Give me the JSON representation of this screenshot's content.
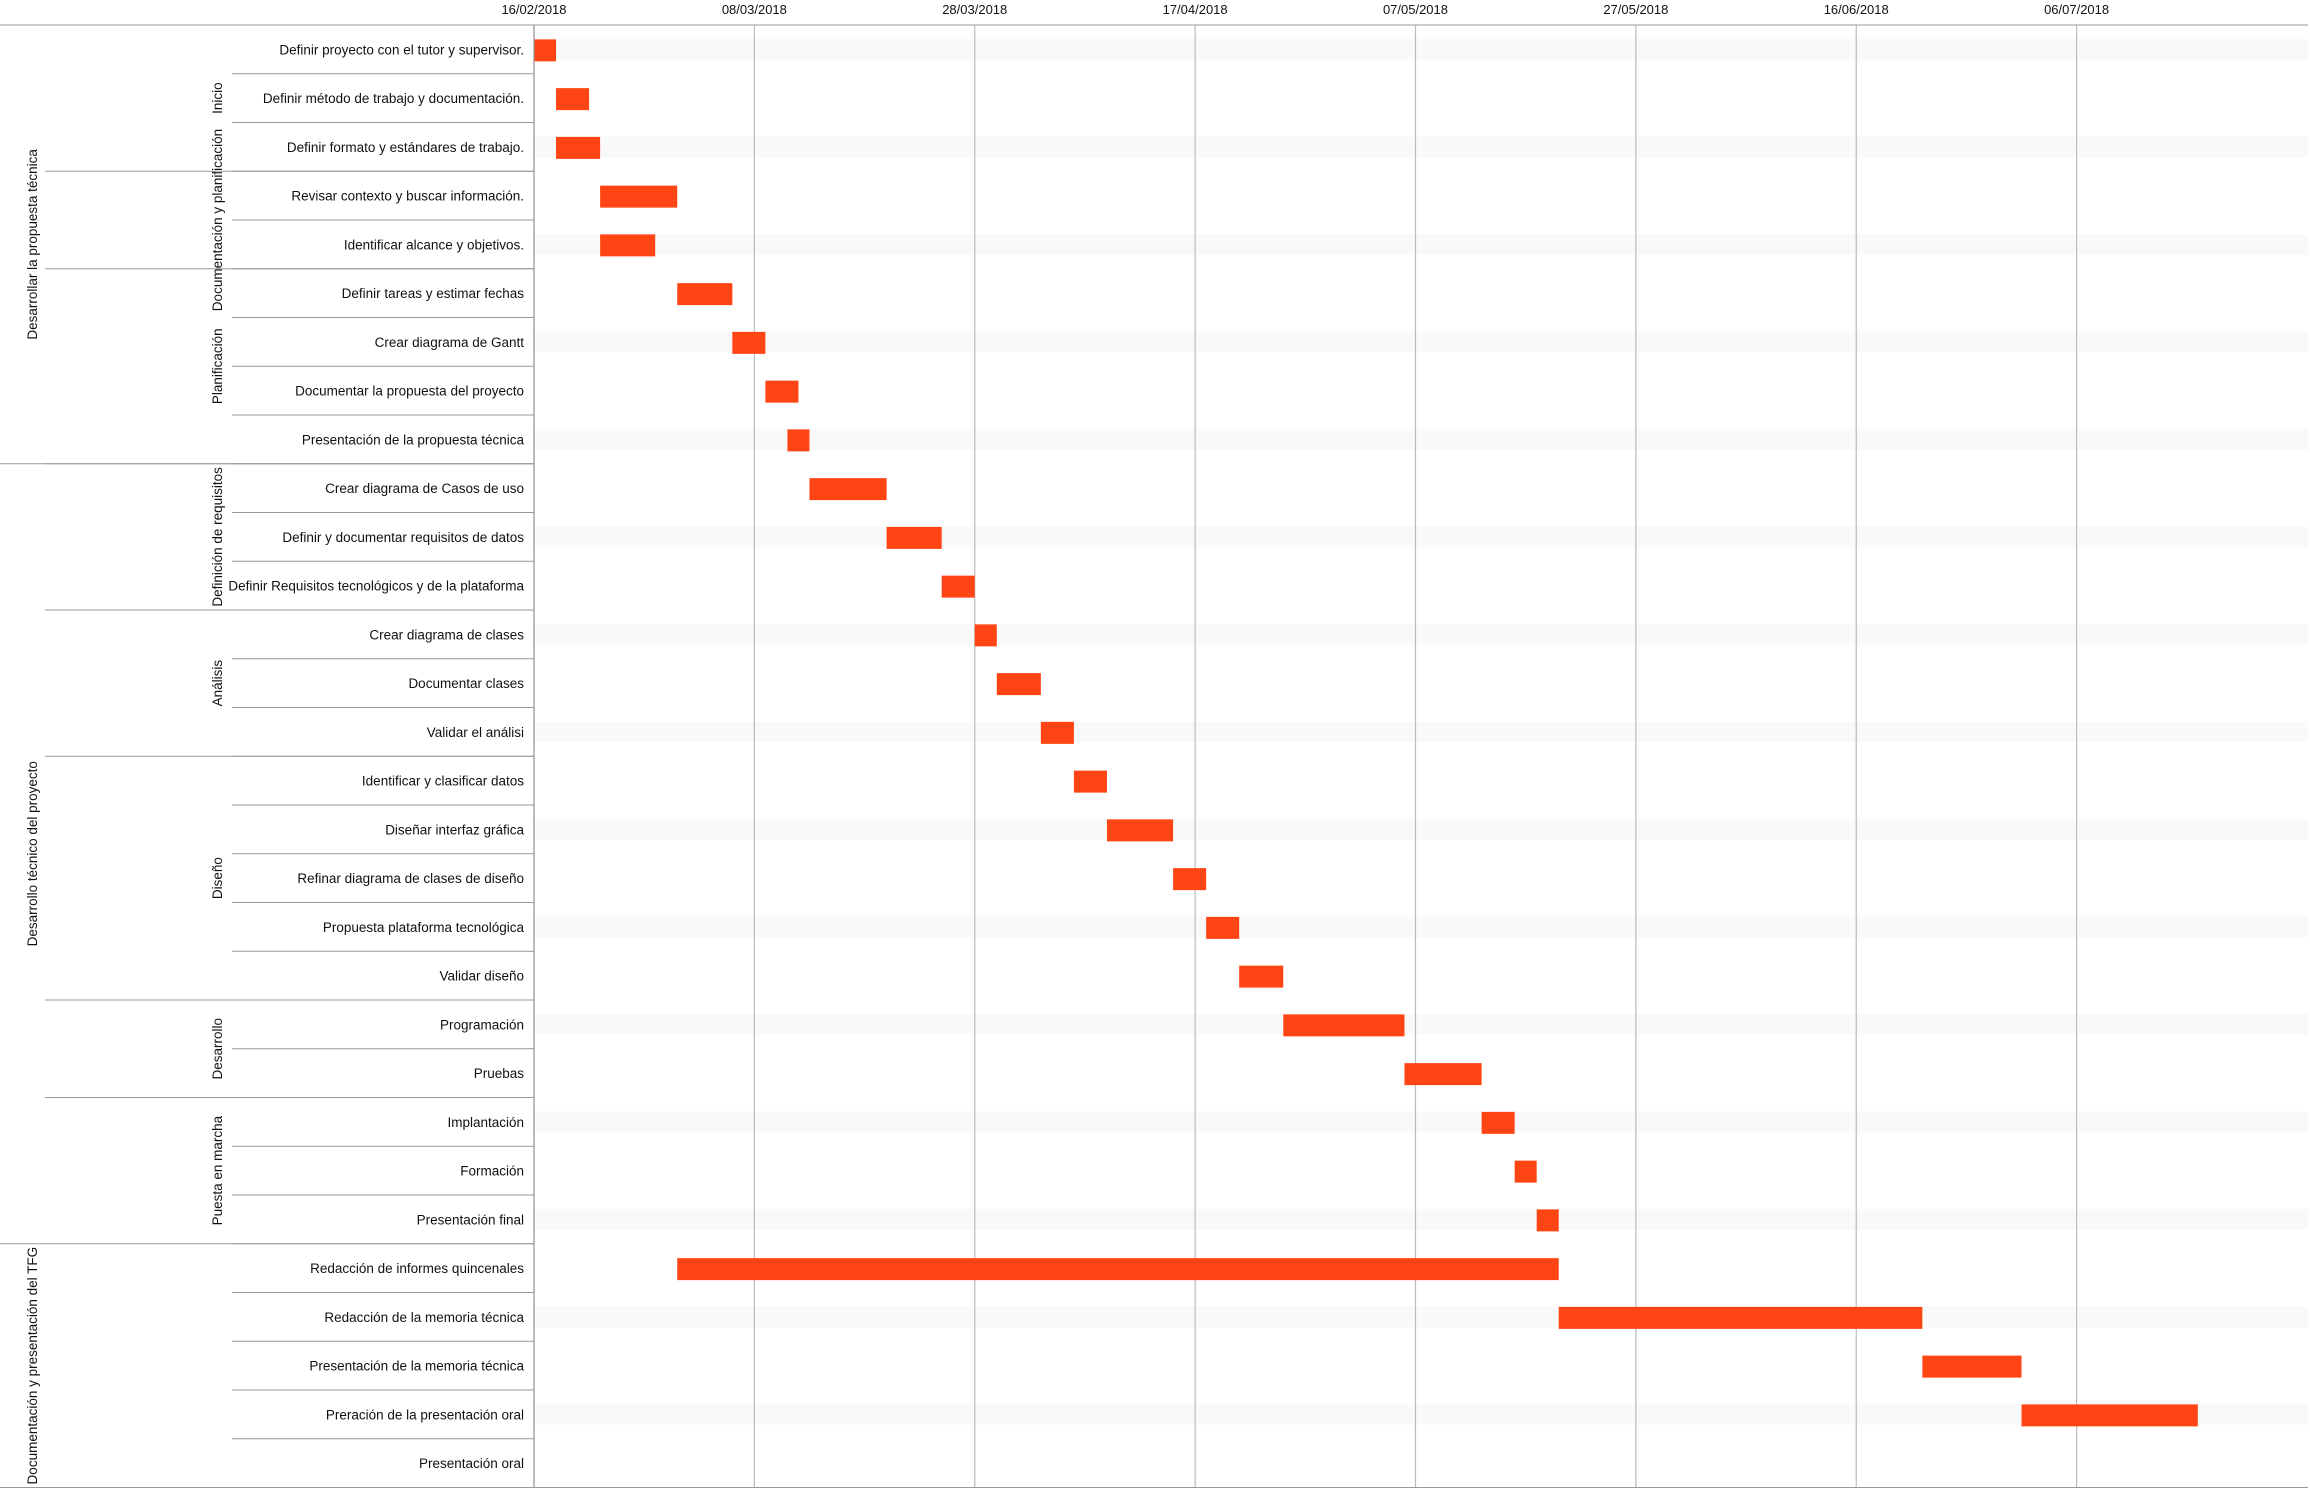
{
  "chart_data": {
    "type": "gantt",
    "bar_color": "#ff4514",
    "grid_color": "#bbbbbb",
    "date_ticks": [
      "16/02/2018",
      "08/03/2018",
      "28/03/2018",
      "17/04/2018",
      "07/05/2018",
      "27/05/2018",
      "16/06/2018",
      "06/07/2018"
    ],
    "x_range": [
      "2018-02-16",
      "2018-07-27"
    ],
    "tasks": [
      {
        "name": "Definir proyecto con el tutor y supervisor.",
        "start": "2018-02-16",
        "end": "2018-02-18"
      },
      {
        "name": "Definir método de trabajo y documentación.",
        "start": "2018-02-18",
        "end": "2018-02-21"
      },
      {
        "name": "Definir formato y estándares de trabajo.",
        "start": "2018-02-18",
        "end": "2018-02-22"
      },
      {
        "name": "Revisar contexto y buscar información.",
        "start": "2018-02-22",
        "end": "2018-03-01"
      },
      {
        "name": "Identificar alcance y objetivos.",
        "start": "2018-02-22",
        "end": "2018-02-27"
      },
      {
        "name": "Definir tareas y estimar fechas",
        "start": "2018-03-01",
        "end": "2018-03-06"
      },
      {
        "name": "Crear diagrama de Gantt",
        "start": "2018-03-06",
        "end": "2018-03-09"
      },
      {
        "name": "Documentar la propuesta del proyecto",
        "start": "2018-03-09",
        "end": "2018-03-12"
      },
      {
        "name": "Presentación de la propuesta técnica",
        "start": "2018-03-11",
        "end": "2018-03-13"
      },
      {
        "name": "Crear diagrama de Casos de uso",
        "start": "2018-03-13",
        "end": "2018-03-20"
      },
      {
        "name": "Definir y documentar requisitos de datos",
        "start": "2018-03-20",
        "end": "2018-03-25"
      },
      {
        "name": "Definir Requisitos tecnológicos y de la plataforma",
        "start": "2018-03-25",
        "end": "2018-03-28"
      },
      {
        "name": "Crear diagrama de clases",
        "start": "2018-03-28",
        "end": "2018-03-30"
      },
      {
        "name": "Documentar clases",
        "start": "2018-03-30",
        "end": "2018-04-03"
      },
      {
        "name": "Validar el análisi",
        "start": "2018-04-03",
        "end": "2018-04-06"
      },
      {
        "name": "Identificar y clasificar datos",
        "start": "2018-04-06",
        "end": "2018-04-09"
      },
      {
        "name": "Diseñar interfaz gráfica",
        "start": "2018-04-09",
        "end": "2018-04-15"
      },
      {
        "name": "Refinar diagrama de clases de diseño",
        "start": "2018-04-15",
        "end": "2018-04-18"
      },
      {
        "name": "Propuesta plataforma tecnológica",
        "start": "2018-04-18",
        "end": "2018-04-21"
      },
      {
        "name": "Validar diseño",
        "start": "2018-04-21",
        "end": "2018-04-25"
      },
      {
        "name": "Programación",
        "start": "2018-04-25",
        "end": "2018-05-06"
      },
      {
        "name": "Pruebas",
        "start": "2018-05-06",
        "end": "2018-05-13"
      },
      {
        "name": "Implantación",
        "start": "2018-05-13",
        "end": "2018-05-16"
      },
      {
        "name": "Formación",
        "start": "2018-05-16",
        "end": "2018-05-18"
      },
      {
        "name": "Presentación final",
        "start": "2018-05-18",
        "end": "2018-05-20"
      },
      {
        "name": "Redacción de informes quincenales",
        "start": "2018-03-01",
        "end": "2018-05-20"
      },
      {
        "name": "Redacción de la memoria técnica",
        "start": "2018-05-20",
        "end": "2018-06-22"
      },
      {
        "name": "Presentación de la memoria técnica",
        "start": "2018-06-22",
        "end": "2018-07-01"
      },
      {
        "name": "Preración de la presentación oral",
        "start": "2018-07-01",
        "end": "2018-07-17"
      },
      {
        "name": "Presentación oral",
        "start": "",
        "end": ""
      }
    ],
    "phases": [
      {
        "name": "Desarrollar la propuesta técnica",
        "first": 0,
        "last": 8
      },
      {
        "name": "Desarrollo técnico del proyecto",
        "first": 9,
        "last": 24
      },
      {
        "name": "Documentación y presentación del TFG",
        "first": 25,
        "last": 29
      }
    ],
    "subphases": [
      {
        "name": "Inicio",
        "first": 0,
        "last": 2
      },
      {
        "name": "Documentación y planificación",
        "first": 3,
        "last": 4
      },
      {
        "name": "Planificación",
        "first": 5,
        "last": 8
      },
      {
        "name": "Definición de requisitos",
        "first": 9,
        "last": 11
      },
      {
        "name": "Análisis",
        "first": 12,
        "last": 14
      },
      {
        "name": "Diseño",
        "first": 15,
        "last": 19
      },
      {
        "name": "Desarrollo",
        "first": 20,
        "last": 21
      },
      {
        "name": "Puesta en marcha",
        "first": 22,
        "last": 24
      }
    ]
  }
}
